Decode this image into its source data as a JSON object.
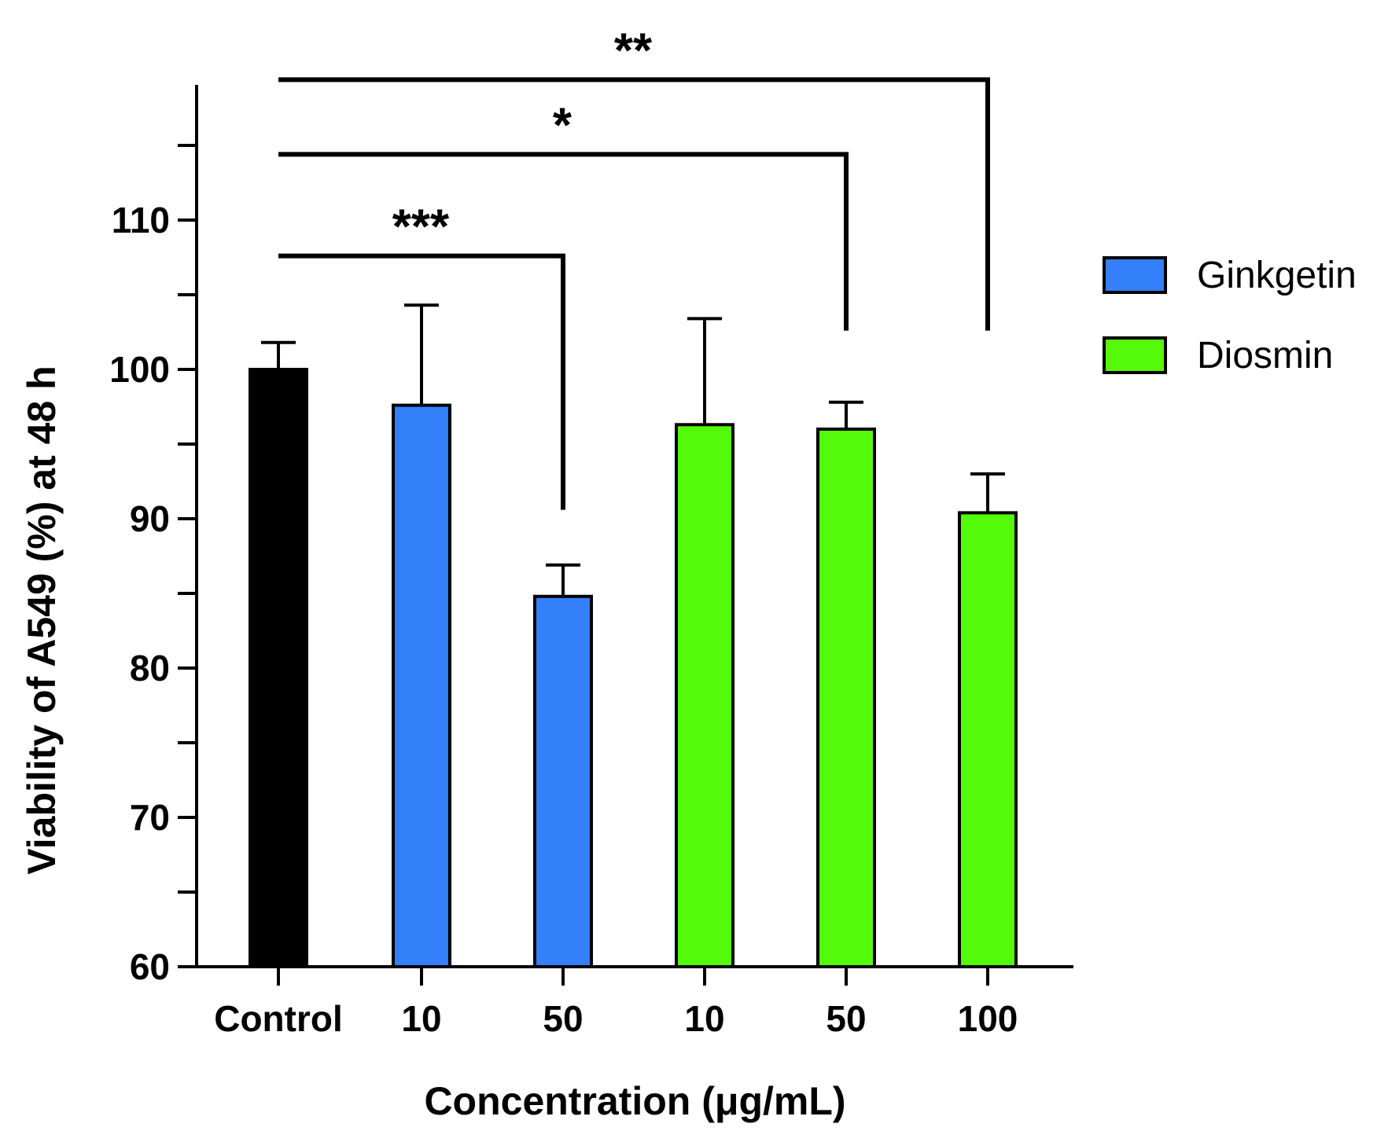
{
  "chart_data": {
    "type": "bar",
    "title": "",
    "xlabel": "Concentration (μg/mL)",
    "ylabel": "Viability of A549 (%) at 48 h",
    "ylim": [
      60,
      120
    ],
    "yticks": [
      60,
      70,
      80,
      90,
      100,
      110
    ],
    "minor_tick_step": 5,
    "grid": false,
    "legend_position": "right",
    "categories": [
      "Control",
      "10",
      "50",
      "10",
      "50",
      "100"
    ],
    "values": [
      100.0,
      97.6,
      84.8,
      96.3,
      96.0,
      90.4
    ],
    "errors": [
      1.8,
      6.7,
      2.1,
      7.1,
      1.8,
      2.6
    ],
    "groups": [
      "Control",
      "Ginkgetin",
      "Ginkgetin",
      "Diosmin",
      "Diosmin",
      "Diosmin"
    ],
    "colors": {
      "Control": "#000000",
      "Ginkgetin": "#3480FA",
      "Diosmin": "#55FA0A"
    },
    "legend": [
      {
        "label": "Ginkgetin",
        "color": "#3480FA"
      },
      {
        "label": "Diosmin",
        "color": "#55FA0A"
      }
    ],
    "significance": [
      {
        "from": 0,
        "to": 2,
        "label": "***",
        "level": 107.6,
        "drop_to": 90.6
      },
      {
        "from": 0,
        "to": 4,
        "label": "*",
        "level": 114.4,
        "drop_to": 102.6
      },
      {
        "from": 0,
        "to": 5,
        "label": "**",
        "level": 119.4,
        "drop_to": 102.6
      }
    ]
  }
}
